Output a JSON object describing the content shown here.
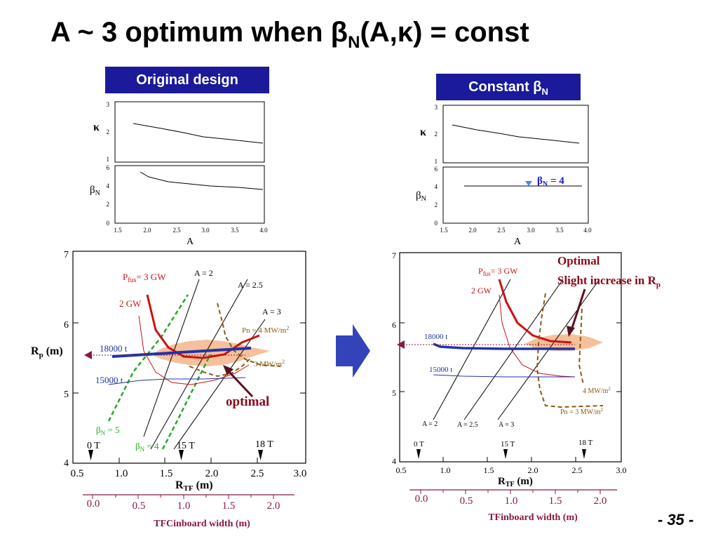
{
  "slide": {
    "title_prefix": "A ~ 3 optimum when ",
    "title_beta": "β",
    "title_sub": "N",
    "title_paren": "(A,",
    "title_kappa": "κ",
    "title_suffix": ") = const",
    "page_number": "- 35 -"
  },
  "labels": {
    "original_design": "Original design",
    "constant_beta_text": "Constant ",
    "constant_beta_symbol": "β",
    "constant_beta_sub": "N"
  },
  "small_panels": {
    "kappa_symbol": "κ",
    "beta_symbol": "β",
    "beta_sub": "N",
    "xlabel": "A",
    "kappa_ticks": [
      "3",
      "2",
      "1"
    ],
    "beta_ticks": [
      "6",
      "4",
      "2",
      "0"
    ],
    "a_ticks": [
      "1.5",
      "2.0",
      "2.5",
      "3.0",
      "3.5",
      "4.0"
    ],
    "beta_n_annotation_symbol": "β",
    "beta_n_annotation_sub": "N",
    "beta_n_annotation_value": " = 4"
  },
  "big_plots": {
    "left": {
      "rp_main": "R",
      "rp_sub": "p",
      "rp_unit": " (m)",
      "rtf_main": "R",
      "rtf_sub": "TF",
      "rtf_unit": " (m)",
      "bottom_axis_label": "TFCinboard width (m)",
      "y_ticks": [
        "7",
        "6",
        "5",
        "4"
      ],
      "x_ticks": [
        "0.5",
        "1.0",
        "1.5",
        "2.0",
        "2.5",
        "3.0"
      ],
      "inboard_ticks": [
        "0.0",
        "0.5",
        "1.0",
        "1.5",
        "2.0"
      ],
      "pfus_p": "P",
      "pfus_sub": "fus",
      "pfus_rest": "= 3 GW",
      "pfus_2": "2 GW",
      "a2": "A = 2",
      "a25": "A = 2.5",
      "a3": "A = 3",
      "pn4": "Pn = 4 MW/m",
      "pn4_sup": "2",
      "pn3": "3 MW/m",
      "pn3_sup": "2",
      "m18000": "18000 t",
      "m15000": "15000 t",
      "bn5_beta": "β",
      "bn5_sub": "N",
      "bn5_val": " = 5",
      "bn4_beta": "β",
      "bn4_sub": "N",
      "bn4_val": " = 4",
      "t0": "0 T",
      "t15": "15 T",
      "t18": "18 T",
      "optimal": "optimal"
    },
    "right": {
      "rtf_main": "R",
      "rtf_sub": "TF",
      "rtf_unit": " (m)",
      "bottom_axis_label": "TFinboard width (m)",
      "y_ticks": [
        "7",
        "6",
        "5",
        "4"
      ],
      "x_ticks": [
        "0.5",
        "1.0",
        "1.5",
        "2.0",
        "2.5",
        "3.0"
      ],
      "inboard_ticks": [
        "0.0",
        "0.5",
        "1.0",
        "1.5",
        "2.0"
      ],
      "pfus_p": "P",
      "pfus_sub": "fus",
      "pfus_rest": "= 3 GW",
      "pfus_2": "2 GW",
      "a2": "A = 2",
      "a25": "A = 2.5",
      "a3": "A = 3",
      "pn4": "4 MW/m",
      "pn4_sup": "2",
      "pn3": "Pn = 3 MW/m",
      "pn3_sup": "2",
      "m18000": "18000 t",
      "m15000": "15000 t",
      "t0": "0 T",
      "t15": "15 T",
      "t18": "18 T",
      "optimal_line1": "Optimal",
      "optimal_line2_prefix": "Slight increase in R",
      "optimal_line2_sub": "p"
    }
  },
  "colors": {
    "title_box_bg": "#1a1a9a",
    "arrow_blue": "#3344bb",
    "curve_red": "#cc1111",
    "curve_blue": "#2233aa",
    "curve_green": "#22aa22",
    "curve_brown": "#8a5a10",
    "blob_orange": "#f5b58a",
    "marker_blue": "#4488dd"
  }
}
